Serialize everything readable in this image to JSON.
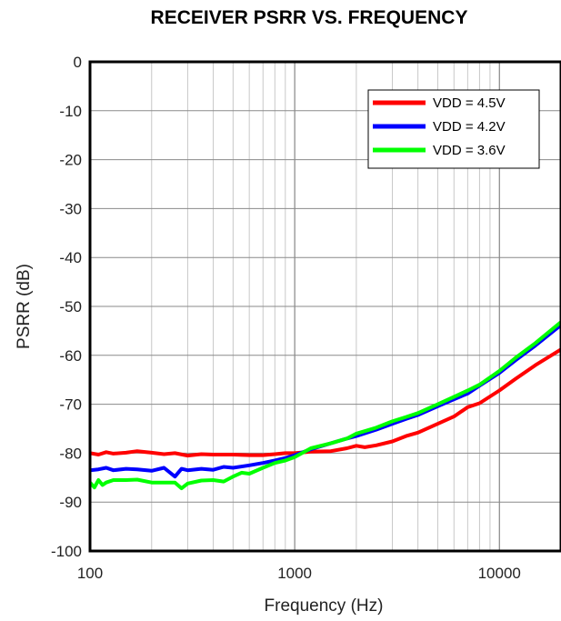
{
  "chart_data": {
    "type": "line",
    "title": "RECEIVER PSRR VS. FREQUENCY",
    "xlabel": "Frequency (Hz)",
    "ylabel": "PSRR (dB)",
    "xscale": "log",
    "xlim": [
      100,
      20000
    ],
    "ylim": [
      -100,
      0
    ],
    "xticks": [
      100,
      1000,
      10000
    ],
    "xtick_labels": [
      "100",
      "1000",
      "10000"
    ],
    "yticks": [
      0,
      -10,
      -20,
      -30,
      -40,
      -50,
      -60,
      -70,
      -80,
      -90,
      -100
    ],
    "ytick_labels": [
      "0",
      "-10",
      "-20",
      "-30",
      "-40",
      "-50",
      "-60",
      "-70",
      "-80",
      "-90",
      "-100"
    ],
    "grid": true,
    "legend_position": "top-right",
    "series": [
      {
        "name": "VDD = 4.5V",
        "color": "#ff0000",
        "x": [
          100,
          110,
          120,
          130,
          150,
          170,
          200,
          230,
          260,
          300,
          350,
          400,
          500,
          600,
          700,
          800,
          900,
          1000,
          1200,
          1500,
          1800,
          2000,
          2200,
          2500,
          3000,
          3500,
          4000,
          5000,
          6000,
          7000,
          8000,
          10000,
          12000,
          15000,
          20000
        ],
        "y": [
          -80,
          -80.3,
          -79.8,
          -80.1,
          -79.9,
          -79.6,
          -79.9,
          -80.2,
          -80.0,
          -80.5,
          -80.2,
          -80.3,
          -80.3,
          -80.4,
          -80.4,
          -80.2,
          -80.0,
          -80.0,
          -79.7,
          -79.6,
          -79.0,
          -78.5,
          -78.8,
          -78.4,
          -77.6,
          -76.5,
          -75.8,
          -74.0,
          -72.5,
          -70.6,
          -69.8,
          -67.2,
          -64.8,
          -62.0,
          -58.8
        ]
      },
      {
        "name": "VDD = 4.2V",
        "color": "#0000ff",
        "x": [
          100,
          110,
          120,
          130,
          150,
          170,
          200,
          230,
          260,
          280,
          300,
          350,
          400,
          450,
          500,
          600,
          700,
          800,
          900,
          1000,
          1200,
          1500,
          1800,
          2000,
          2500,
          3000,
          3500,
          4000,
          5000,
          6000,
          7000,
          8000,
          10000,
          12000,
          15000,
          20000
        ],
        "y": [
          -83.5,
          -83.3,
          -83.0,
          -83.5,
          -83.2,
          -83.3,
          -83.6,
          -83.0,
          -84.8,
          -83.2,
          -83.5,
          -83.2,
          -83.4,
          -82.8,
          -83.0,
          -82.5,
          -82.0,
          -81.5,
          -81.0,
          -80.4,
          -79.2,
          -78.0,
          -77.0,
          -76.5,
          -75.2,
          -74.0,
          -73.0,
          -72.2,
          -70.4,
          -69.0,
          -67.8,
          -66.2,
          -63.6,
          -61.0,
          -58.0,
          -53.8
        ]
      },
      {
        "name": "VDD = 3.6V",
        "color": "#00ff00",
        "x": [
          100,
          105,
          110,
          115,
          120,
          130,
          150,
          170,
          200,
          230,
          260,
          280,
          300,
          350,
          400,
          450,
          500,
          550,
          600,
          700,
          800,
          900,
          1000,
          1200,
          1500,
          1800,
          2000,
          2500,
          3000,
          3500,
          4000,
          5000,
          6000,
          7000,
          8000,
          10000,
          12000,
          15000,
          20000
        ],
        "y": [
          -86.0,
          -87.0,
          -85.5,
          -86.5,
          -86.0,
          -85.5,
          -85.5,
          -85.4,
          -86.0,
          -86.0,
          -86.0,
          -87.2,
          -86.2,
          -85.6,
          -85.5,
          -85.8,
          -84.8,
          -84.0,
          -84.2,
          -83.0,
          -82.0,
          -81.5,
          -80.8,
          -79.0,
          -78.0,
          -77.0,
          -76.0,
          -74.8,
          -73.5,
          -72.6,
          -71.8,
          -70.0,
          -68.5,
          -67.2,
          -66.0,
          -63.2,
          -60.5,
          -57.5,
          -53.2
        ]
      }
    ]
  }
}
